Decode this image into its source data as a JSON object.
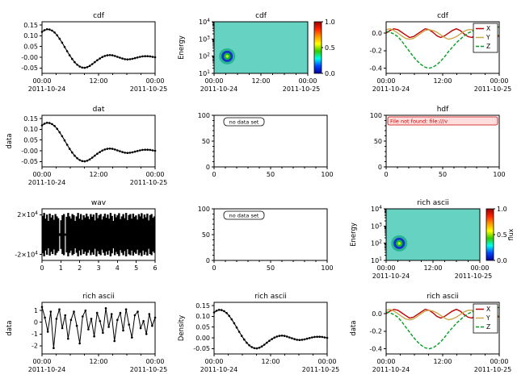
{
  "app": {
    "background": "#ffffff"
  },
  "time_axis": {
    "ticks": [
      "00:00",
      "12:00",
      "00:00"
    ],
    "date_left": "2011-10-24",
    "date_right": "2011-10-25"
  },
  "palette": {
    "series_x_red": "#c00000",
    "series_y_tan": "#c8a84a",
    "series_z_green": "#00a020",
    "spectro_background": "#66d2c2",
    "error_red": "#cc0000",
    "error_bg": "#ffdddd"
  },
  "curves": {
    "damped": [
      0.118,
      0.126,
      0.13,
      0.129,
      0.124,
      0.115,
      0.102,
      0.086,
      0.068,
      0.048,
      0.028,
      0.009,
      -0.008,
      -0.023,
      -0.035,
      -0.043,
      -0.048,
      -0.049,
      -0.046,
      -0.04,
      -0.032,
      -0.023,
      -0.014,
      -0.006,
      0.001,
      0.006,
      0.009,
      0.01,
      0.009,
      0.006,
      0.002,
      -0.002,
      -0.006,
      -0.009,
      -0.01,
      -0.009,
      -0.007,
      -0.004,
      -0.001,
      0.002,
      0.004,
      0.005,
      0.005,
      0.004,
      0.002,
      0.0
    ],
    "vx": [
      0.0,
      0.03,
      0.05,
      0.04,
      0.01,
      -0.02,
      -0.05,
      -0.04,
      -0.01,
      0.02,
      0.05,
      0.04,
      0.01,
      -0.03,
      -0.05,
      -0.03,
      0.0,
      0.03,
      0.05,
      0.03,
      -0.01,
      -0.04,
      -0.05,
      -0.02,
      0.01,
      0.04,
      0.04,
      0.01,
      -0.02,
      -0.04
    ],
    "vy": [
      0.04,
      0.05,
      0.03,
      0.0,
      -0.03,
      -0.06,
      -0.07,
      -0.06,
      -0.03,
      0.0,
      0.03,
      0.04,
      0.03,
      0.01,
      -0.02,
      -0.05,
      -0.07,
      -0.06,
      -0.04,
      -0.01,
      0.02,
      0.04,
      0.04,
      0.02,
      -0.01,
      -0.04,
      -0.06,
      -0.06,
      -0.04,
      -0.02
    ],
    "vz": [
      0.02,
      0.01,
      -0.01,
      -0.04,
      -0.09,
      -0.15,
      -0.21,
      -0.27,
      -0.32,
      -0.36,
      -0.39,
      -0.4,
      -0.39,
      -0.36,
      -0.32,
      -0.27,
      -0.21,
      -0.16,
      -0.11,
      -0.07,
      -0.03,
      0.0,
      0.02,
      0.04,
      0.05,
      0.06,
      0.06,
      0.07,
      0.07,
      0.07
    ],
    "noisy": [
      1.3,
      0.4,
      -0.8,
      0.9,
      -2.2,
      0.3,
      1.1,
      -0.5,
      0.6,
      -1.4,
      0.2,
      0.9,
      -0.3,
      -1.8,
      0.5,
      1.0,
      -0.6,
      0.3,
      -1.2,
      0.8,
      0.1,
      -0.9,
      1.2,
      -0.4,
      0.7,
      -1.6,
      0.2,
      0.8,
      -0.7,
      1.1,
      -0.2,
      -1.3,
      0.6,
      0.9,
      -0.5,
      0.1,
      -1.0,
      0.7,
      -0.3,
      0.4
    ],
    "envelope": [
      0.82,
      0.95,
      0.7,
      0.88,
      0.6,
      0.92,
      0.75,
      0.85,
      0.65,
      0.9,
      0.8,
      0.72,
      0.06,
      0.63,
      0.85,
      0.9,
      0.05,
      0.78,
      0.95,
      0.8,
      0.7,
      0.9,
      0.85,
      0.6,
      0.8,
      0.95,
      0.7,
      0.9,
      0.65,
      0.85,
      0.75,
      0.92,
      0.8,
      0.68,
      0.9,
      0.78,
      0.88,
      0.62,
      0.95,
      0.72,
      0.85,
      0.9,
      0.66,
      0.8,
      0.92,
      0.74,
      0.88,
      0.7,
      0.95,
      0.82,
      0.6,
      0.9,
      0.76,
      0.85,
      0.94,
      0.68,
      0.8,
      0.9,
      0.72,
      0.95,
      0.64,
      0.86,
      0.9,
      0.7,
      0.92,
      0.78,
      0.84,
      0.66,
      0.9,
      0.8,
      0.94,
      0.7,
      0.88,
      0.76,
      0.92,
      0.62,
      0.85,
      0.9,
      0.74,
      0.8
    ]
  },
  "chart_data": [
    {
      "name": "plot-cdf-series",
      "type": "line",
      "title": "cdf",
      "ylabel": null,
      "xaxis": "time",
      "ylim": [
        -0.075,
        0.165
      ],
      "yticks": [
        {
          "v": 0.15,
          "l": "0.15"
        },
        {
          "v": 0.1,
          "l": "0.10"
        },
        {
          "v": 0.05,
          "l": "0.05"
        },
        {
          "v": 0.0,
          "l": "-0.00"
        },
        {
          "v": -0.05,
          "l": "-0.05"
        }
      ],
      "series": [
        {
          "name": "cdf",
          "color": "#000000",
          "markers": true,
          "width": 1.1,
          "y_ref": "damped"
        }
      ]
    },
    {
      "name": "plot-cdf-spectrogram",
      "type": "spectro",
      "title": "cdf",
      "ylabel": "Energy",
      "xaxis": "time",
      "bg": "#66d2c2",
      "ylog_ticks": [
        "10^1",
        "10^2",
        "10^3",
        "10^4"
      ],
      "blob": {
        "fx": 0.14,
        "fy": 0.33,
        "rings": [
          {
            "r": 10,
            "c": "#29b493"
          },
          {
            "r": 7,
            "c": "#1632cc"
          },
          {
            "r": 4.2,
            "c": "#11bb33"
          },
          {
            "r": 1.8,
            "c": "#c6e822"
          }
        ]
      },
      "colorbar": {
        "labels": [
          "1.0",
          "0.5",
          "0.0"
        ],
        "stops": [
          "#990000",
          "#ff2200",
          "#ff9900",
          "#ffff00",
          "#33cc00",
          "#00ffee",
          "#0044ff",
          "#000099"
        ],
        "title": null
      }
    },
    {
      "name": "plot-cdf-vector",
      "type": "line",
      "title": "cdf",
      "ylabel": null,
      "xaxis": "time",
      "ylim": [
        -0.46,
        0.13
      ],
      "yticks": [
        {
          "v": 0.0,
          "l": "0.0"
        },
        {
          "v": -0.2,
          "l": "-0.2"
        },
        {
          "v": -0.4,
          "l": "-0.4"
        }
      ],
      "series": [
        {
          "name": "X",
          "color": "#c00000",
          "width": 1.4,
          "y_ref": "vx"
        },
        {
          "name": "Y",
          "color": "#c8a84a",
          "width": 1.4,
          "y_ref": "vy"
        },
        {
          "name": "Z",
          "color": "#00a020",
          "width": 1.4,
          "dash": "4,2",
          "y_ref": "vz"
        }
      ],
      "legend": [
        "X",
        "Y",
        "Z"
      ]
    },
    {
      "name": "plot-dat-series",
      "type": "line",
      "title": "dat",
      "ylabel": "data",
      "xaxis": "time",
      "ylim": [
        -0.075,
        0.165
      ],
      "yticks": [
        {
          "v": 0.15,
          "l": "0.15"
        },
        {
          "v": 0.1,
          "l": "0.10"
        },
        {
          "v": 0.05,
          "l": "0.05"
        },
        {
          "v": 0.0,
          "l": "-0.00"
        },
        {
          "v": -0.05,
          "l": "-0.05"
        }
      ],
      "series": [
        {
          "name": "dat",
          "color": "#000000",
          "markers": true,
          "width": 1.1,
          "y_ref": "damped"
        }
      ]
    },
    {
      "name": "plot-empty-nodata-1",
      "type": "empty",
      "title": null,
      "xaxis": "num",
      "xticks": {
        "pos": [
          0,
          0.5,
          1
        ],
        "labels": [
          "0",
          "50",
          "100"
        ],
        "minors": [
          0.1,
          0.2,
          0.3,
          0.4,
          0.6,
          0.7,
          0.8,
          0.9
        ]
      },
      "ylim": [
        0,
        100
      ],
      "yticks": [
        {
          "v": 100,
          "l": "100"
        },
        {
          "v": 50,
          "l": "50"
        },
        {
          "v": 0,
          "l": "0"
        }
      ],
      "yminors": [
        10,
        20,
        30,
        40,
        60,
        70,
        80,
        90
      ],
      "message": {
        "text": "no data set",
        "style": "plain"
      }
    },
    {
      "name": "plot-hdf-error",
      "type": "empty",
      "title": "hdf",
      "xaxis": "num",
      "xticks": {
        "pos": [
          0,
          0.5,
          1
        ],
        "labels": [
          "0",
          "50",
          "100"
        ],
        "minors": [
          0.1,
          0.2,
          0.3,
          0.4,
          0.6,
          0.7,
          0.8,
          0.9
        ]
      },
      "ylim": [
        0,
        100
      ],
      "yticks": [
        {
          "v": 100,
          "l": "100"
        },
        {
          "v": 50,
          "l": "50"
        },
        {
          "v": 0,
          "l": "0"
        }
      ],
      "yminors": [
        10,
        20,
        30,
        40,
        60,
        70,
        80,
        90
      ],
      "message": {
        "text": "File not found: file:///v",
        "style": "error"
      }
    },
    {
      "name": "plot-wav-waveform",
      "type": "wave",
      "title": "wav",
      "ylabel": null,
      "xaxis": "num",
      "xticks": {
        "pos": [
          0,
          0.1667,
          0.3333,
          0.5,
          0.6667,
          0.8333,
          1
        ],
        "labels": [
          "0",
          "1",
          "2",
          "3",
          "4",
          "5",
          "6"
        ]
      },
      "ylim": [
        -26000,
        26000
      ],
      "yticks": [
        {
          "v": 20000,
          "l": "2×10^4"
        },
        {
          "v": -20000,
          "l": "-2×10^4"
        }
      ],
      "amp": 23000,
      "env_ref": "envelope"
    },
    {
      "name": "plot-empty-nodata-2",
      "type": "empty",
      "title": null,
      "xaxis": "num",
      "xticks": {
        "pos": [
          0,
          0.5,
          1
        ],
        "labels": [
          "0",
          "50",
          "100"
        ],
        "minors": [
          0.1,
          0.2,
          0.3,
          0.4,
          0.6,
          0.7,
          0.8,
          0.9
        ]
      },
      "ylim": [
        0,
        100
      ],
      "yticks": [
        {
          "v": 100,
          "l": "100"
        },
        {
          "v": 50,
          "l": "50"
        },
        {
          "v": 0,
          "l": "0"
        }
      ],
      "yminors": [
        10,
        20,
        30,
        40,
        60,
        70,
        80,
        90
      ],
      "message": {
        "text": "no data set",
        "style": "plain"
      }
    },
    {
      "name": "plot-richascii-spectrogram",
      "type": "spectro",
      "title": "rich ascii",
      "ylabel": "Energy",
      "xaxis": "time",
      "bg": "#66d2c2",
      "ylog_ticks": [
        "10^1",
        "10^2",
        "10^3",
        "10^4"
      ],
      "blob": {
        "fx": 0.14,
        "fy": 0.33,
        "rings": [
          {
            "r": 10,
            "c": "#29b493"
          },
          {
            "r": 7,
            "c": "#1632cc"
          },
          {
            "r": 4.2,
            "c": "#11bb33"
          },
          {
            "r": 1.8,
            "c": "#c6e822"
          }
        ]
      },
      "colorbar": {
        "labels": [
          "1.0",
          "0.5",
          "0.0"
        ],
        "stops": [
          "#990000",
          "#ff2200",
          "#ff9900",
          "#ffff00",
          "#33cc00",
          "#00ffee",
          "#0044ff",
          "#000099"
        ],
        "title": "flux"
      }
    },
    {
      "name": "plot-richascii-series",
      "type": "line",
      "title": "rich ascii",
      "ylabel": "data",
      "xaxis": "time",
      "ylim": [
        -2.7,
        1.7
      ],
      "yticks": [
        {
          "v": 1,
          "l": "1"
        },
        {
          "v": 0,
          "l": "0"
        },
        {
          "v": -1,
          "l": "-1"
        },
        {
          "v": -2,
          "l": "-2"
        }
      ],
      "series": [
        {
          "name": "rich",
          "color": "#000000",
          "markers": true,
          "width": 1.0,
          "y_ref": "noisy"
        }
      ]
    },
    {
      "name": "plot-richascii-density",
      "type": "line",
      "title": "rich ascii",
      "ylabel": "Density",
      "xaxis": "time",
      "ylim": [
        -0.075,
        0.165
      ],
      "yticks": [
        {
          "v": 0.15,
          "l": "0.15"
        },
        {
          "v": 0.1,
          "l": "0.10"
        },
        {
          "v": 0.05,
          "l": "0.05"
        },
        {
          "v": 0.0,
          "l": "0.00"
        },
        {
          "v": -0.05,
          "l": "-0.05"
        }
      ],
      "series": [
        {
          "name": "density",
          "color": "#000000",
          "markers": true,
          "width": 1.1,
          "y_ref": "damped"
        }
      ]
    },
    {
      "name": "plot-richascii-vector",
      "type": "line",
      "title": "rich ascii",
      "ylabel": "data",
      "xaxis": "time",
      "ylim": [
        -0.46,
        0.13
      ],
      "yticks": [
        {
          "v": 0.0,
          "l": "0.0"
        },
        {
          "v": -0.2,
          "l": "-0.2"
        },
        {
          "v": -0.4,
          "l": "-0.4"
        }
      ],
      "series": [
        {
          "name": "X",
          "color": "#c00000",
          "width": 1.4,
          "y_ref": "vx"
        },
        {
          "name": "Y",
          "color": "#c8a84a",
          "width": 1.4,
          "y_ref": "vy"
        },
        {
          "name": "Z",
          "color": "#00a020",
          "width": 1.4,
          "dash": "4,2",
          "y_ref": "vz"
        }
      ],
      "legend": [
        "X",
        "Y",
        "Z"
      ]
    }
  ]
}
